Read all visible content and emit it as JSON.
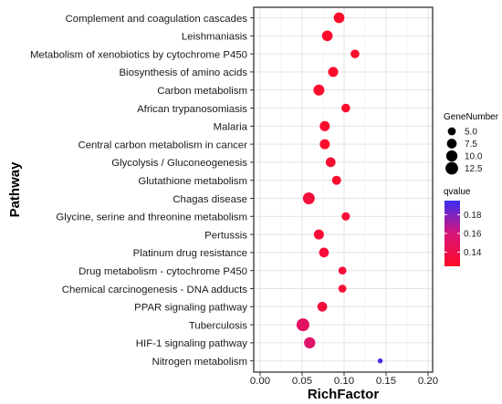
{
  "chart_data": {
    "type": "scatter",
    "xlabel": "RichFactor",
    "ylabel": "Pathway",
    "xlim": [
      0,
      0.2
    ],
    "x_ticks": [
      "0.00",
      "0.05",
      "0.10",
      "0.15",
      "0.20"
    ],
    "grid": true,
    "legend_position": "right",
    "size_legend": {
      "title": "GeneNumber",
      "values": [
        5.0,
        7.5,
        10.0,
        12.5
      ],
      "labels": [
        "5.0",
        "7.5",
        "10.0",
        "12.5"
      ]
    },
    "color_legend": {
      "title": "qvalue",
      "ticks": [
        0.18,
        0.16,
        0.14
      ],
      "labels": [
        "0.18",
        "0.16",
        "0.14"
      ],
      "range": [
        0.125,
        0.195
      ],
      "low_color": "#ff0a26",
      "mid_color": "#d6157a",
      "high_color": "#3a2df2"
    },
    "points": [
      {
        "pathway": "Complement and coagulation cascades",
        "x": 0.094,
        "gene_number": 9,
        "qvalue": 0.127
      },
      {
        "pathway": "Leishmaniasis",
        "x": 0.08,
        "gene_number": 9,
        "qvalue": 0.127
      },
      {
        "pathway": "Metabolism of xenobiotics by cytochrome P450",
        "x": 0.113,
        "gene_number": 6,
        "qvalue": 0.127
      },
      {
        "pathway": "Biosynthesis of amino acids",
        "x": 0.087,
        "gene_number": 8,
        "qvalue": 0.128
      },
      {
        "pathway": "Carbon metabolism",
        "x": 0.07,
        "gene_number": 9.5,
        "qvalue": 0.128
      },
      {
        "pathway": "African trypanosomiasis",
        "x": 0.102,
        "gene_number": 6,
        "qvalue": 0.128
      },
      {
        "pathway": "Malaria",
        "x": 0.077,
        "gene_number": 8,
        "qvalue": 0.128
      },
      {
        "pathway": "Central carbon metabolism in cancer",
        "x": 0.077,
        "gene_number": 8,
        "qvalue": 0.128
      },
      {
        "pathway": "Glycolysis / Gluconeogenesis",
        "x": 0.084,
        "gene_number": 7.5,
        "qvalue": 0.129
      },
      {
        "pathway": "Glutathione metabolism",
        "x": 0.091,
        "gene_number": 6.5,
        "qvalue": 0.129
      },
      {
        "pathway": "Chagas disease",
        "x": 0.058,
        "gene_number": 11,
        "qvalue": 0.134
      },
      {
        "pathway": "Glycine, serine and threonine metabolism",
        "x": 0.102,
        "gene_number": 5.5,
        "qvalue": 0.132
      },
      {
        "pathway": "Pertussis",
        "x": 0.07,
        "gene_number": 8,
        "qvalue": 0.132
      },
      {
        "pathway": "Platinum drug resistance",
        "x": 0.076,
        "gene_number": 7.5,
        "qvalue": 0.132
      },
      {
        "pathway": "Drug metabolism - cytochrome P450",
        "x": 0.098,
        "gene_number": 5,
        "qvalue": 0.133
      },
      {
        "pathway": "Chemical carcinogenesis - DNA adducts",
        "x": 0.098,
        "gene_number": 5,
        "qvalue": 0.133
      },
      {
        "pathway": "PPAR signaling pathway",
        "x": 0.074,
        "gene_number": 7.5,
        "qvalue": 0.134
      },
      {
        "pathway": "Tuberculosis",
        "x": 0.051,
        "gene_number": 13,
        "qvalue": 0.15
      },
      {
        "pathway": "HIF-1 signaling pathway",
        "x": 0.059,
        "gene_number": 10,
        "qvalue": 0.153
      },
      {
        "pathway": "Nitrogen metabolism",
        "x": 0.143,
        "gene_number": 2,
        "qvalue": 0.192
      }
    ]
  }
}
